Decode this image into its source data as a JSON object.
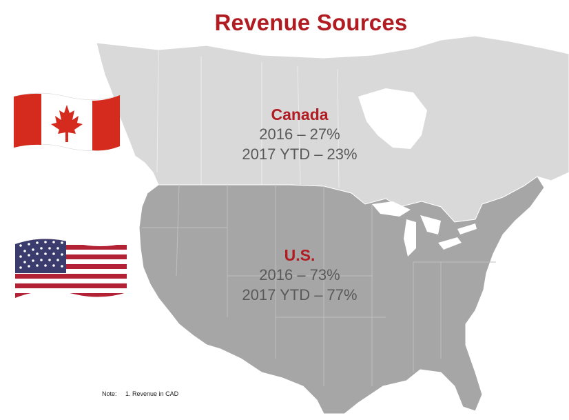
{
  "slide": {
    "title": "Revenue Sources",
    "colors": {
      "accent": "#b01c22",
      "body_text": "#595959",
      "canada_land": "#d9d9d9",
      "us_land": "#a6a6a6"
    }
  },
  "canada": {
    "name": "Canada",
    "line_2016": "2016 – 27%",
    "line_2017": "2017 YTD – 23%",
    "flag_icon": "canada-flag-icon"
  },
  "us": {
    "name": "U.S.",
    "line_2016": "2016 – 73%",
    "line_2017": "2017 YTD – 77%",
    "flag_icon": "us-flag-icon"
  },
  "note": {
    "label": "Note:",
    "text": "1. Revenue in CAD"
  }
}
